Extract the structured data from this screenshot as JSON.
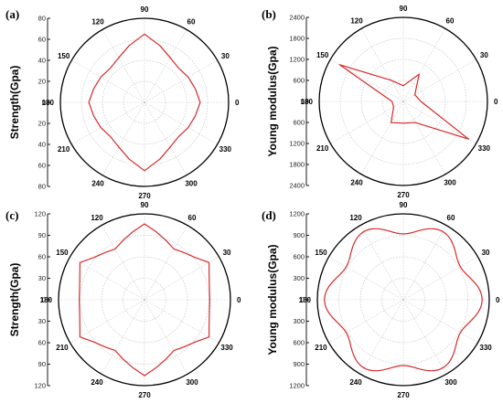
{
  "chart_data": [
    {
      "panel": "(a)",
      "type": "polar-line",
      "ylabel": "Strength(Gpa)",
      "rmax": 80,
      "r_ticks": [
        "80",
        "60",
        "40",
        "20",
        "0",
        "20",
        "40",
        "60",
        "80"
      ],
      "angle_labels": [
        "0",
        "30",
        "60",
        "90",
        "120",
        "150",
        "180",
        "210",
        "240",
        "270",
        "300",
        "330"
      ],
      "color": "#d62a2a",
      "theta": [
        0,
        15,
        30,
        45,
        60,
        75,
        90,
        105,
        120,
        135,
        150,
        165,
        180,
        195,
        210,
        225,
        240,
        255,
        270,
        285,
        300,
        315,
        330,
        345,
        360
      ],
      "r": [
        53,
        50,
        48,
        46,
        49,
        56,
        65,
        56,
        49,
        46,
        48,
        50,
        53,
        50,
        48,
        46,
        49,
        56,
        65,
        56,
        49,
        46,
        48,
        50,
        53
      ]
    },
    {
      "panel": "(b)",
      "type": "polar-line",
      "ylabel": "Young modulus(Gpa)",
      "rmax": 2400,
      "r_ticks": [
        "2400",
        "1800",
        "1200",
        "600",
        "0",
        "600",
        "1200",
        "1800",
        "2400"
      ],
      "angle_labels": [
        "0",
        "30",
        "60",
        "90",
        "120",
        "150",
        "180",
        "210",
        "240",
        "270",
        "300",
        "330"
      ],
      "color": "#d62a2a",
      "theta": [
        0,
        30,
        60,
        90,
        120,
        150,
        180,
        210,
        240,
        270,
        300,
        330,
        360
      ],
      "r": [
        500,
        380,
        900,
        450,
        700,
        2100,
        320,
        320,
        700,
        620,
        700,
        2150,
        500
      ]
    },
    {
      "panel": "(c)",
      "type": "polar-line",
      "ylabel": "Strength(Gpa)",
      "rmax": 120,
      "r_ticks": [
        "120",
        "90",
        "60",
        "30",
        "0",
        "30",
        "60",
        "90",
        "120"
      ],
      "angle_labels": [
        "0",
        "30",
        "60",
        "90",
        "120",
        "150",
        "180",
        "210",
        "240",
        "270",
        "300",
        "330"
      ],
      "color": "#d62a2a",
      "theta": [
        0,
        10,
        20,
        30,
        40,
        50,
        60,
        70,
        80,
        90,
        100,
        110,
        120,
        130,
        140,
        150,
        160,
        170,
        180,
        190,
        200,
        210,
        220,
        230,
        240,
        250,
        260,
        270,
        280,
        290,
        300,
        310,
        320,
        330,
        340,
        350,
        360
      ],
      "r": [
        91,
        92,
        96,
        104,
        92,
        86,
        82,
        88,
        96,
        106,
        96,
        88,
        82,
        86,
        92,
        104,
        96,
        92,
        91,
        92,
        96,
        104,
        92,
        86,
        82,
        88,
        96,
        106,
        96,
        88,
        82,
        86,
        92,
        104,
        96,
        92,
        91
      ]
    },
    {
      "panel": "(d)",
      "type": "polar-line",
      "ylabel": "Young modulus(Gpa)",
      "rmax": 1200,
      "r_ticks": [
        "1200",
        "900",
        "600",
        "300",
        "0",
        "300",
        "600",
        "900",
        "1200"
      ],
      "angle_labels": [
        "0",
        "30",
        "60",
        "90",
        "120",
        "150",
        "180",
        "210",
        "240",
        "270",
        "300",
        "330"
      ],
      "color": "#d62a2a",
      "mean": 1010,
      "amplitude": 90,
      "lobes": 6,
      "phase_deg": 0
    }
  ]
}
